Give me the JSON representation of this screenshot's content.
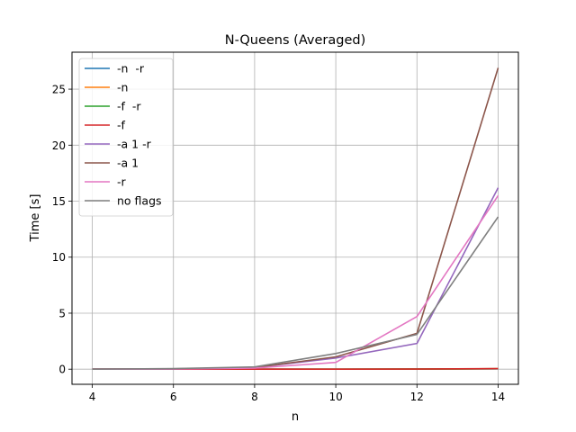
{
  "chart_data": {
    "type": "line",
    "title": "N-Queens (Averaged)",
    "xlabel": "n",
    "ylabel": "Time [s]",
    "x": [
      4,
      6,
      8,
      10,
      12,
      14
    ],
    "xlim": [
      3.5,
      14.5
    ],
    "ylim": [
      -1.35,
      28.3
    ],
    "xticks": [
      4,
      6,
      8,
      10,
      12,
      14
    ],
    "yticks": [
      0,
      5,
      10,
      15,
      20,
      25
    ],
    "grid": true,
    "legend_position": "top-left",
    "series": [
      {
        "name": "-n  -r",
        "color": "#1f77b4",
        "values": [
          0.0,
          0.0,
          0.0,
          0.0,
          0.01,
          0.03
        ]
      },
      {
        "name": "-n",
        "color": "#ff7f0e",
        "values": [
          0.0,
          0.0,
          0.0,
          0.0,
          0.01,
          0.04
        ]
      },
      {
        "name": "-f  -r",
        "color": "#2ca02c",
        "values": [
          0.0,
          0.0,
          0.0,
          0.0,
          0.01,
          0.04
        ]
      },
      {
        "name": "-f",
        "color": "#d62728",
        "values": [
          0.0,
          0.0,
          0.0,
          0.0,
          0.01,
          0.05
        ]
      },
      {
        "name": "-a 1 -r",
        "color": "#9467bd",
        "values": [
          0.0,
          0.02,
          0.15,
          1.0,
          2.3,
          16.2
        ]
      },
      {
        "name": "-a 1",
        "color": "#8c564b",
        "values": [
          0.0,
          0.03,
          0.15,
          1.1,
          3.2,
          26.9
        ]
      },
      {
        "name": "-r",
        "color": "#e377c2",
        "values": [
          0.0,
          0.02,
          0.1,
          0.6,
          4.7,
          15.5
        ]
      },
      {
        "name": "no flags",
        "color": "#7f7f7f",
        "values": [
          0.0,
          0.05,
          0.2,
          1.4,
          3.1,
          13.6
        ]
      }
    ]
  }
}
